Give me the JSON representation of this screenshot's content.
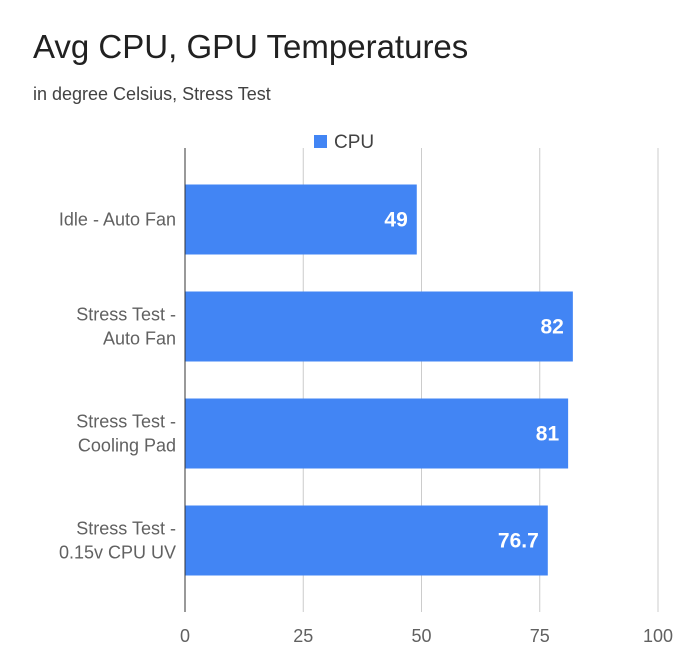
{
  "chart_data": {
    "type": "bar",
    "orientation": "horizontal",
    "title": "Avg CPU, GPU Temperatures",
    "subtitle": "in degree Celsius, Stress Test",
    "categories": [
      [
        "Idle - Auto Fan"
      ],
      [
        "Stress Test -",
        "Auto Fan"
      ],
      [
        "Stress Test -",
        "Cooling Pad"
      ],
      [
        "Stress Test -",
        "0.15v CPU UV"
      ]
    ],
    "series": [
      {
        "name": "CPU",
        "values": [
          49,
          82,
          81,
          76.7
        ],
        "data_labels": [
          "49",
          "82",
          "81",
          "76.7"
        ],
        "color": "#4285f4"
      }
    ],
    "xlim": [
      0,
      100
    ],
    "xticks": [
      0,
      25,
      50,
      75,
      100
    ],
    "grid": true,
    "legend_position": "top"
  }
}
